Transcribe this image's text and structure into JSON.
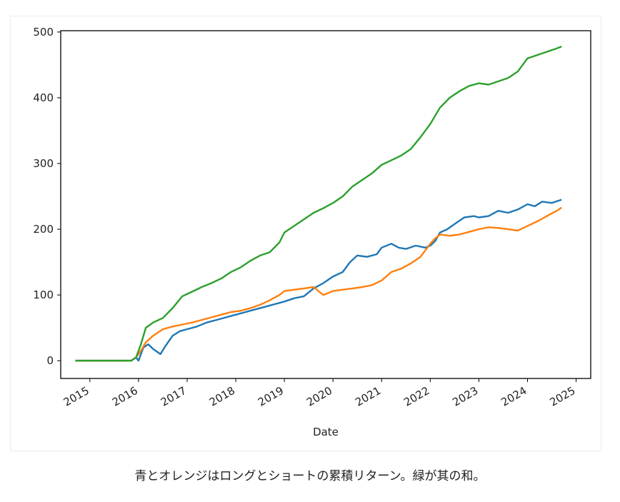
{
  "caption": "青とオレンジはロングとショートの累積リターン。緑が其の和。",
  "chart_data": {
    "type": "line",
    "title": "",
    "xlabel": "Date",
    "ylabel": "",
    "xlim": [
      2014.4,
      2025.3
    ],
    "ylim": [
      -27,
      502
    ],
    "xticks": [
      2015,
      2016,
      2017,
      2018,
      2019,
      2020,
      2021,
      2022,
      2023,
      2024,
      2025
    ],
    "xtick_labels": [
      "2015",
      "2016",
      "2017",
      "2018",
      "2019",
      "2020",
      "2021",
      "2022",
      "2023",
      "2024",
      "2025"
    ],
    "yticks": [
      0,
      100,
      200,
      300,
      400,
      500
    ],
    "ytick_labels": [
      "0",
      "100",
      "200",
      "300",
      "400",
      "500"
    ],
    "grid": false,
    "legend": null,
    "series": [
      {
        "color": "#1f77b4",
        "x": [
          2014.7,
          2015.85,
          2015.95,
          2016.0,
          2016.1,
          2016.2,
          2016.3,
          2016.45,
          2016.55,
          2016.7,
          2016.85,
          2017.0,
          2017.2,
          2017.4,
          2017.6,
          2017.8,
          2018.0,
          2018.2,
          2018.4,
          2018.6,
          2018.8,
          2019.0,
          2019.2,
          2019.4,
          2019.6,
          2019.8,
          2020.0,
          2020.2,
          2020.35,
          2020.5,
          2020.7,
          2020.9,
          2021.0,
          2021.2,
          2021.35,
          2021.5,
          2021.7,
          2021.9,
          2022.0,
          2022.1,
          2022.2,
          2022.35,
          2022.5,
          2022.7,
          2022.9,
          2023.0,
          2023.2,
          2023.4,
          2023.6,
          2023.8,
          2024.0,
          2024.15,
          2024.3,
          2024.5,
          2024.7
        ],
        "y": [
          0,
          0,
          5,
          0,
          20,
          25,
          18,
          10,
          22,
          38,
          45,
          48,
          52,
          58,
          62,
          66,
          70,
          74,
          78,
          82,
          86,
          90,
          95,
          98,
          110,
          118,
          128,
          135,
          150,
          160,
          158,
          162,
          172,
          178,
          172,
          170,
          175,
          172,
          175,
          182,
          195,
          200,
          208,
          218,
          220,
          218,
          220,
          228,
          225,
          230,
          238,
          235,
          242,
          240,
          245
        ]
      },
      {
        "color": "#ff7f0e",
        "x": [
          2014.7,
          2015.85,
          2015.95,
          2016.05,
          2016.15,
          2016.3,
          2016.5,
          2016.7,
          2016.9,
          2017.1,
          2017.3,
          2017.5,
          2017.7,
          2017.9,
          2018.1,
          2018.3,
          2018.5,
          2018.7,
          2018.9,
          2019.0,
          2019.2,
          2019.4,
          2019.6,
          2019.8,
          2020.0,
          2020.2,
          2020.4,
          2020.6,
          2020.8,
          2021.0,
          2021.2,
          2021.4,
          2021.6,
          2021.8,
          2022.0,
          2022.1,
          2022.2,
          2022.4,
          2022.6,
          2022.8,
          2023.0,
          2023.2,
          2023.4,
          2023.6,
          2023.8,
          2024.0,
          2024.2,
          2024.4,
          2024.6,
          2024.7
        ],
        "y": [
          0,
          0,
          5,
          15,
          28,
          38,
          48,
          52,
          55,
          58,
          62,
          66,
          70,
          74,
          76,
          80,
          85,
          92,
          100,
          106,
          108,
          110,
          112,
          100,
          106,
          108,
          110,
          112,
          115,
          122,
          135,
          140,
          148,
          158,
          178,
          186,
          192,
          190,
          192,
          196,
          200,
          203,
          202,
          200,
          198,
          205,
          212,
          220,
          228,
          233
        ]
      },
      {
        "color": "#2ca02c",
        "x": [
          2014.7,
          2015.85,
          2015.95,
          2016.05,
          2016.15,
          2016.3,
          2016.5,
          2016.7,
          2016.9,
          2017.1,
          2017.3,
          2017.5,
          2017.7,
          2017.9,
          2018.1,
          2018.3,
          2018.5,
          2018.7,
          2018.9,
          2019.0,
          2019.2,
          2019.4,
          2019.6,
          2019.8,
          2020.0,
          2020.2,
          2020.4,
          2020.6,
          2020.8,
          2021.0,
          2021.2,
          2021.4,
          2021.6,
          2021.8,
          2022.0,
          2022.2,
          2022.4,
          2022.6,
          2022.8,
          2023.0,
          2023.2,
          2023.4,
          2023.6,
          2023.8,
          2024.0,
          2024.2,
          2024.4,
          2024.6,
          2024.7
        ],
        "y": [
          0,
          0,
          5,
          25,
          50,
          58,
          65,
          80,
          98,
          105,
          112,
          118,
          125,
          135,
          142,
          152,
          160,
          165,
          180,
          195,
          205,
          215,
          225,
          232,
          240,
          250,
          265,
          275,
          285,
          298,
          305,
          312,
          322,
          340,
          360,
          385,
          400,
          410,
          418,
          422,
          420,
          425,
          430,
          440,
          460,
          465,
          470,
          475,
          478
        ]
      }
    ]
  }
}
